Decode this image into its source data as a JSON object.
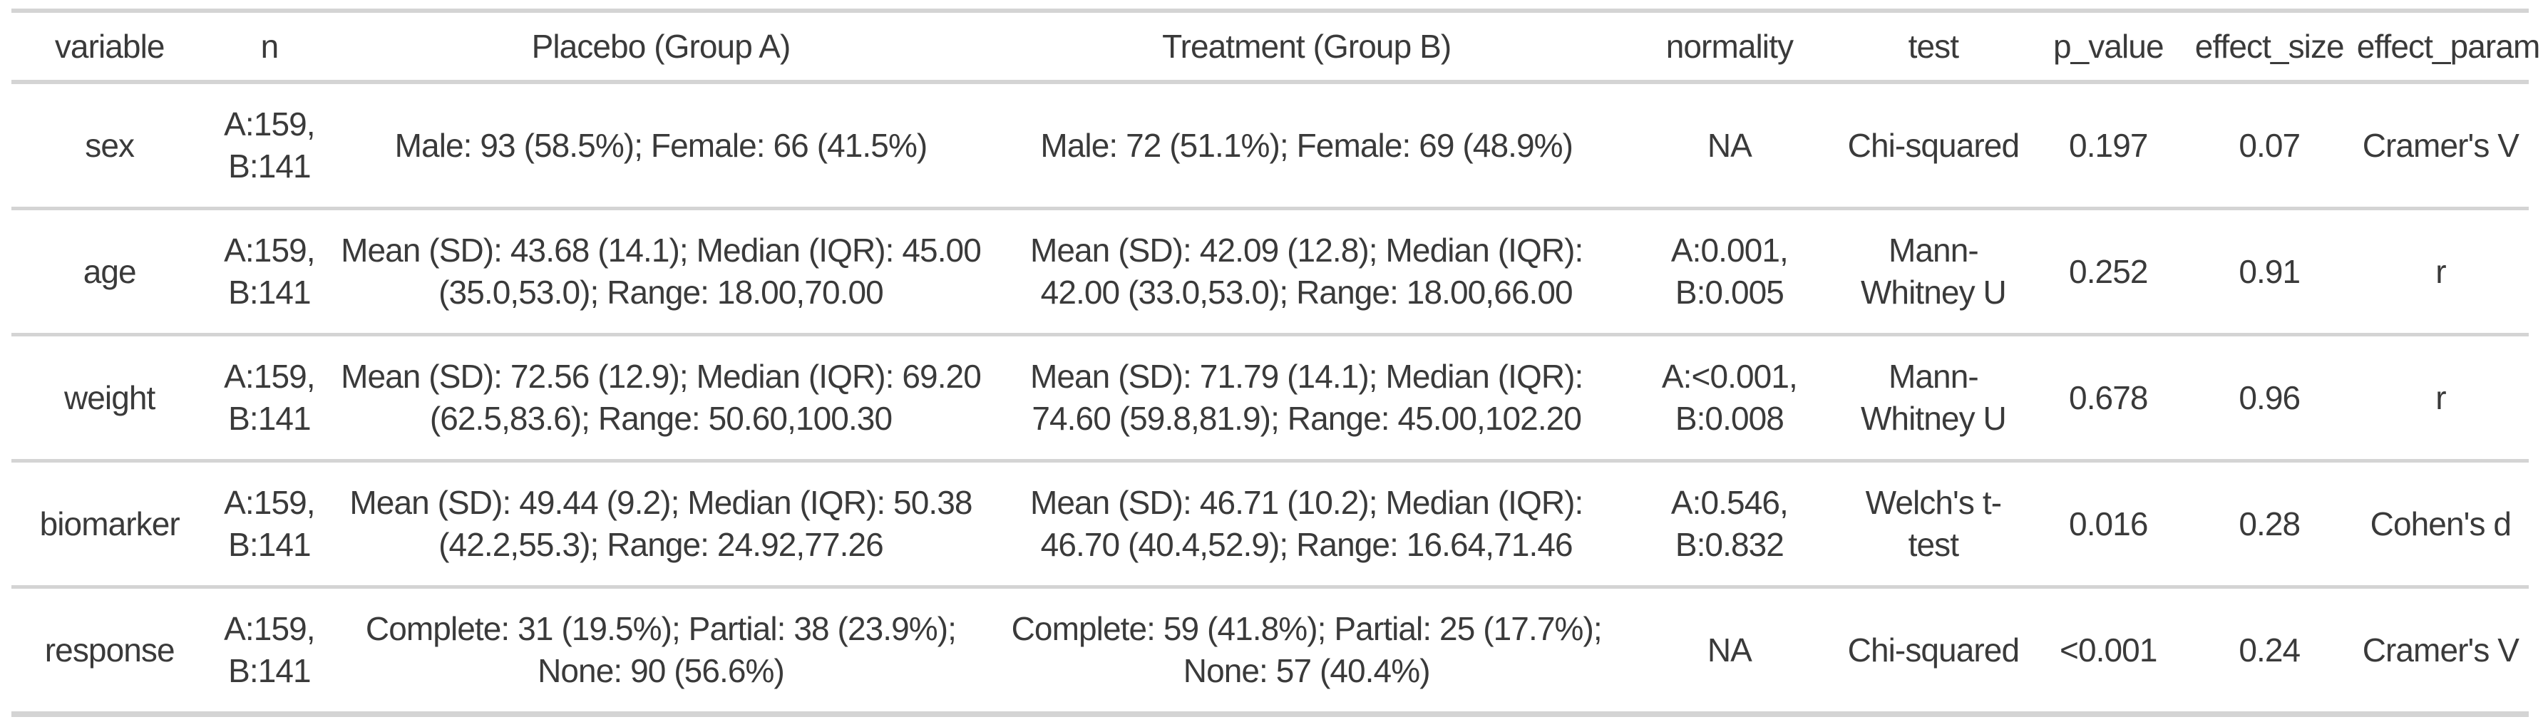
{
  "chart_data": {
    "type": "table",
    "title": "",
    "columns": [
      {
        "key": "variable",
        "label": "variable"
      },
      {
        "key": "n",
        "label": "n"
      },
      {
        "key": "placebo",
        "label": "Placebo (Group A)"
      },
      {
        "key": "treatment",
        "label": "Treatment (Group B)"
      },
      {
        "key": "normality",
        "label": "normality"
      },
      {
        "key": "test",
        "label": "test"
      },
      {
        "key": "p_value",
        "label": "p_value"
      },
      {
        "key": "effect_size",
        "label": "effect_size"
      },
      {
        "key": "effect_param",
        "label": "effect_param"
      }
    ],
    "rows": [
      {
        "variable": "sex",
        "n": "A:159, B:141",
        "placebo": "Male: 93 (58.5%); Female: 66 (41.5%)",
        "treatment": "Male: 72 (51.1%); Female: 69 (48.9%)",
        "normality": "NA",
        "test": "Chi-squared",
        "p_value": "0.197",
        "effect_size": "0.07",
        "effect_param": "Cramer's V"
      },
      {
        "variable": "age",
        "n": "A:159, B:141",
        "placebo": "Mean (SD): 43.68 (14.1); Median (IQR): 45.00 (35.0,53.0); Range: 18.00,70.00",
        "treatment": "Mean (SD): 42.09 (12.8); Median (IQR): 42.00 (33.0,53.0); Range: 18.00,66.00",
        "normality": "A:0.001, B:0.005",
        "test": "Mann-Whitney U",
        "p_value": "0.252",
        "effect_size": "0.91",
        "effect_param": "r"
      },
      {
        "variable": "weight",
        "n": "A:159, B:141",
        "placebo": "Mean (SD): 72.56 (12.9); Median (IQR): 69.20 (62.5,83.6); Range: 50.60,100.30",
        "treatment": "Mean (SD): 71.79 (14.1); Median (IQR): 74.60 (59.8,81.9); Range: 45.00,102.20",
        "normality": "A:<0.001, B:0.008",
        "test": "Mann-Whitney U",
        "p_value": "0.678",
        "effect_size": "0.96",
        "effect_param": "r"
      },
      {
        "variable": "biomarker",
        "n": "A:159, B:141",
        "placebo": "Mean (SD): 49.44 (9.2); Median (IQR): 50.38 (42.2,55.3); Range: 24.92,77.26",
        "treatment": "Mean (SD): 46.71 (10.2); Median (IQR): 46.70 (40.4,52.9); Range: 16.64,71.46",
        "normality": "A:0.546, B:0.832",
        "test": "Welch's t-test",
        "p_value": "0.016",
        "effect_size": "0.28",
        "effect_param": "Cohen's d"
      },
      {
        "variable": "response",
        "n": "A:159, B:141",
        "placebo": "Complete: 31 (19.5%); Partial: 38 (23.9%); None: 90 (56.6%)",
        "treatment": "Complete: 59 (41.8%); Partial: 25 (17.7%); None: 57 (40.4%)",
        "normality": "NA",
        "test": "Chi-squared",
        "p_value": "<0.001",
        "effect_size": "0.24",
        "effect_param": "Cramer's V"
      }
    ],
    "layout": {
      "grid": "horizontal-rules-only",
      "header_position": "top",
      "text_align": "center"
    },
    "colors": {
      "rule": "#d4d4d4",
      "text": "#3a3a3a",
      "background": "#ffffff"
    }
  }
}
